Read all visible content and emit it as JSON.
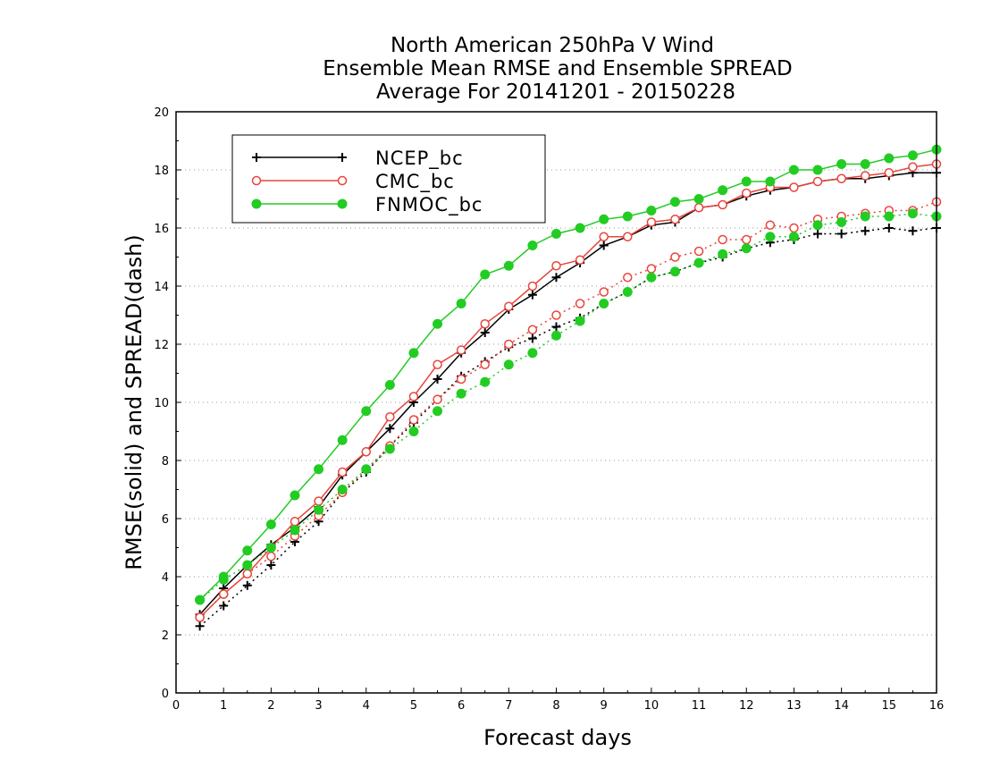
{
  "chart_data": {
    "type": "line",
    "title": [
      "North American 250hPa V Wind",
      "Ensemble Mean RMSE and Ensemble SPREAD",
      "Average For 20141201 - 20150228"
    ],
    "xlabel": "Forecast days",
    "ylabel": "RMSE(solid) and SPREAD(dash)",
    "xlim": [
      0,
      16
    ],
    "ylim": [
      0,
      20
    ],
    "xticks": [
      "0",
      "1",
      "2",
      "3",
      "4",
      "5",
      "6",
      "7",
      "8",
      "9",
      "10",
      "11",
      "12",
      "13",
      "14",
      "15",
      "16"
    ],
    "yticks": [
      "0",
      "2",
      "4",
      "6",
      "8",
      "10",
      "12",
      "14",
      "16",
      "18",
      "20"
    ],
    "grid": true,
    "legend_position": "top-left",
    "x": [
      0.5,
      1,
      1.5,
      2,
      2.5,
      3,
      3.5,
      4,
      4.5,
      5,
      5.5,
      6,
      6.5,
      7,
      7.5,
      8,
      8.5,
      9,
      9.5,
      10,
      10.5,
      11,
      11.5,
      12,
      12.5,
      13,
      13.5,
      14,
      14.5,
      15,
      15.5,
      16
    ],
    "series": [
      {
        "name": "NCEP_bc",
        "color": "#000000",
        "marker": "plus",
        "rmse": [
          2.7,
          3.6,
          4.4,
          5.1,
          5.7,
          6.4,
          7.5,
          8.3,
          9.1,
          10.0,
          10.8,
          11.7,
          12.4,
          13.2,
          13.7,
          14.3,
          14.8,
          15.4,
          15.7,
          16.1,
          16.2,
          16.7,
          16.8,
          17.1,
          17.3,
          17.4,
          17.6,
          17.7,
          17.7,
          17.8,
          17.9,
          17.9
        ],
        "spread": [
          2.3,
          3.0,
          3.7,
          4.4,
          5.2,
          5.9,
          6.9,
          7.6,
          8.5,
          9.3,
          10.1,
          10.9,
          11.4,
          11.9,
          12.2,
          12.6,
          12.9,
          13.4,
          13.8,
          14.3,
          14.5,
          14.8,
          15.0,
          15.3,
          15.5,
          15.6,
          15.8,
          15.8,
          15.9,
          16.0,
          15.9,
          16.0
        ]
      },
      {
        "name": "CMC_bc",
        "color": "#e8453c",
        "marker": "circle-open",
        "rmse": [
          2.6,
          3.4,
          4.1,
          5.0,
          5.9,
          6.6,
          7.6,
          8.3,
          9.5,
          10.2,
          11.3,
          11.8,
          12.7,
          13.3,
          14.0,
          14.7,
          14.9,
          15.7,
          15.7,
          16.2,
          16.3,
          16.7,
          16.8,
          17.2,
          17.4,
          17.4,
          17.6,
          17.7,
          17.8,
          17.9,
          18.1,
          18.2
        ],
        "spread": [
          2.6,
          3.4,
          4.1,
          4.7,
          5.4,
          6.1,
          6.9,
          7.7,
          8.5,
          9.4,
          10.1,
          10.8,
          11.3,
          12.0,
          12.5,
          13.0,
          13.4,
          13.8,
          14.3,
          14.6,
          15.0,
          15.2,
          15.6,
          15.6,
          16.1,
          16.0,
          16.3,
          16.4,
          16.5,
          16.6,
          16.6,
          16.9
        ]
      },
      {
        "name": "FNMOC_bc",
        "color": "#22cc22",
        "marker": "circle-filled",
        "rmse": [
          3.2,
          4.0,
          4.9,
          5.8,
          6.8,
          7.7,
          8.7,
          9.7,
          10.6,
          11.7,
          12.7,
          13.4,
          14.4,
          14.7,
          15.4,
          15.8,
          16.0,
          16.3,
          16.4,
          16.6,
          16.9,
          17.0,
          17.3,
          17.6,
          17.6,
          18.0,
          18.0,
          18.2,
          18.2,
          18.4,
          18.5,
          18.7
        ],
        "spread": [
          3.2,
          3.9,
          4.4,
          5.0,
          5.6,
          6.3,
          7.0,
          7.7,
          8.4,
          9.0,
          9.7,
          10.3,
          10.7,
          11.3,
          11.7,
          12.3,
          12.8,
          13.4,
          13.8,
          14.3,
          14.5,
          14.8,
          15.1,
          15.3,
          15.7,
          15.7,
          16.1,
          16.2,
          16.4,
          16.4,
          16.5,
          16.4
        ]
      }
    ]
  }
}
